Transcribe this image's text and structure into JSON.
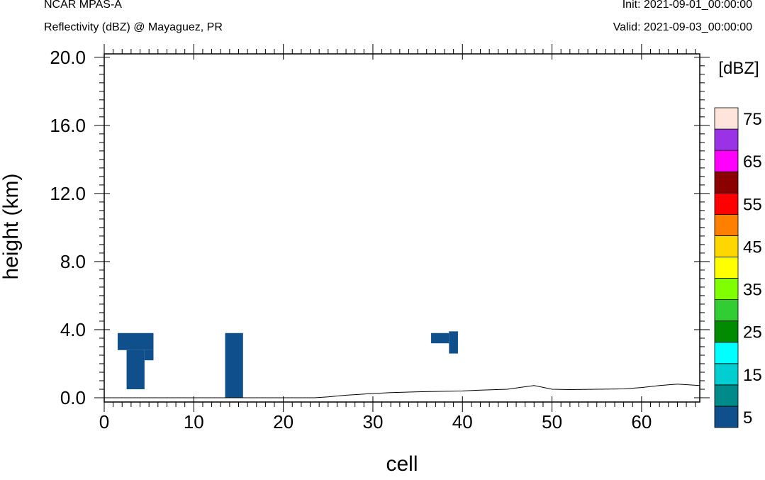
{
  "header": {
    "model": "NCAR MPAS-A",
    "field": "Reflectivity (dBZ) @ Mayaguez, PR",
    "init": "Init: 2021-09-01_00:00:00",
    "valid": "Valid: 2021-09-03_00:00:00"
  },
  "chart_data": {
    "type": "heatmap",
    "xlabel": "cell",
    "ylabel": "height (km)",
    "xlim": [
      0,
      66.5
    ],
    "ylim": [
      -0.25,
      20.2
    ],
    "x_ticks": [
      0,
      10,
      20,
      30,
      40,
      50,
      60
    ],
    "x_tick_labels": [
      "0",
      "10",
      "20",
      "30",
      "40",
      "50",
      "60"
    ],
    "y_ticks": [
      0,
      4,
      8,
      12,
      16,
      20
    ],
    "y_tick_labels": [
      "0.0",
      "4.0",
      "8.0",
      "12.0",
      "16.0",
      "20.0"
    ],
    "colorbar": {
      "title": "[dBZ]",
      "levels": [
        5,
        10,
        15,
        20,
        25,
        30,
        35,
        40,
        45,
        50,
        55,
        60,
        65,
        70,
        75
      ],
      "label_values": [
        5,
        15,
        25,
        35,
        45,
        55,
        65,
        75
      ],
      "labels": [
        "5",
        "15",
        "25",
        "35",
        "45",
        "55",
        "65",
        "75"
      ],
      "colors": [
        "#0f4f8c",
        "#008b8b",
        "#00ced1",
        "#00ffff",
        "#008b00",
        "#32cd32",
        "#7fff00",
        "#ffff00",
        "#ffd700",
        "#ff7f00",
        "#ff0000",
        "#8b0000",
        "#ff00ff",
        "#9a32e6",
        "#ffe4dc"
      ]
    },
    "cells": [
      {
        "x0": 1.5,
        "x1": 5.5,
        "y0": 2.8,
        "y1": 3.8,
        "dbz": 5
      },
      {
        "x0": 2.5,
        "x1": 4.5,
        "y0": 0.5,
        "y1": 2.8,
        "dbz": 5
      },
      {
        "x0": 4.5,
        "x1": 5.5,
        "y0": 2.2,
        "y1": 2.8,
        "dbz": 5
      },
      {
        "x0": 13.5,
        "x1": 15.5,
        "y0": 0.0,
        "y1": 3.8,
        "dbz": 5
      },
      {
        "x0": 36.5,
        "x1": 38.5,
        "y0": 3.2,
        "y1": 3.8,
        "dbz": 5
      },
      {
        "x0": 38.5,
        "x1": 39.5,
        "y0": 2.6,
        "y1": 3.9,
        "dbz": 5
      }
    ],
    "terrain": {
      "x": [
        0.5,
        5,
        10,
        15,
        20,
        23.5,
        25,
        27,
        30,
        32,
        35,
        38,
        40,
        42,
        45,
        48,
        50,
        52,
        55,
        58,
        60,
        62,
        64,
        66.5
      ],
      "y": [
        0.0,
        0.0,
        0.0,
        0.0,
        0.0,
        0.0,
        0.05,
        0.15,
        0.25,
        0.3,
        0.35,
        0.38,
        0.4,
        0.45,
        0.5,
        0.72,
        0.5,
        0.48,
        0.5,
        0.52,
        0.6,
        0.72,
        0.8,
        0.72
      ]
    }
  }
}
